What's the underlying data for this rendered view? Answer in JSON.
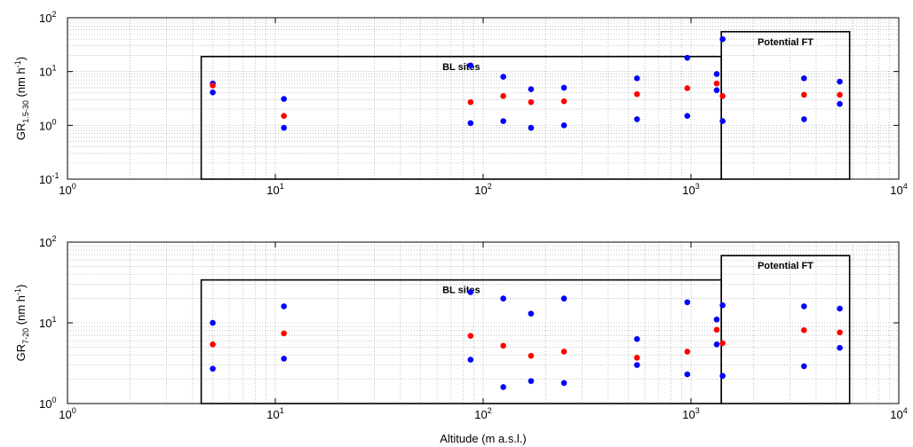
{
  "chart_data": [
    {
      "type": "scatter",
      "x_scale": "log",
      "y_scale": "log",
      "xlim": [
        1,
        10000
      ],
      "ylim": [
        0.1,
        100
      ],
      "grid": true,
      "ylabel": {
        "main": "GR",
        "sub": "1.5-30",
        "unit": " (nm h",
        "unit_exp": "-1",
        "close": ")"
      },
      "xlabel": "",
      "x_ticks": [
        {
          "base": "10",
          "exp": "0"
        },
        {
          "base": "10",
          "exp": "1"
        },
        {
          "base": "10",
          "exp": "2"
        },
        {
          "base": "10",
          "exp": "3"
        },
        {
          "base": "10",
          "exp": "4"
        }
      ],
      "y_ticks": [
        {
          "base": "10",
          "exp": "-1"
        },
        {
          "base": "10",
          "exp": "0"
        },
        {
          "base": "10",
          "exp": "1"
        },
        {
          "base": "10",
          "exp": "2"
        }
      ],
      "regions": [
        {
          "label": "BL sites",
          "x": [
            4.4,
            1400
          ],
          "y": [
            0.1,
            19
          ]
        },
        {
          "label": "Potential FT",
          "x": [
            1400,
            5800
          ],
          "y": [
            0.1,
            55
          ]
        }
      ],
      "series": [
        {
          "color": "#0000ff",
          "points": [
            [
              5,
              4.1
            ],
            [
              5,
              6.0
            ],
            [
              11,
              3.1
            ],
            [
              11,
              0.9
            ],
            [
              87,
              13
            ],
            [
              87,
              1.1
            ],
            [
              125,
              8
            ],
            [
              125,
              1.2
            ],
            [
              170,
              4.7
            ],
            [
              170,
              0.9
            ],
            [
              245,
              5.0
            ],
            [
              245,
              1.0
            ],
            [
              550,
              7.5
            ],
            [
              550,
              1.3
            ],
            [
              960,
              18
            ],
            [
              960,
              1.5
            ],
            [
              1330,
              9
            ],
            [
              1330,
              4.5
            ],
            [
              1420,
              40
            ],
            [
              1420,
              1.2
            ],
            [
              3500,
              7.5
            ],
            [
              3500,
              1.3
            ],
            [
              5200,
              6.5
            ],
            [
              5200,
              2.5
            ]
          ]
        },
        {
          "color": "#ff0000",
          "points": [
            [
              5,
              5.5
            ],
            [
              11,
              1.5
            ],
            [
              87,
              2.7
            ],
            [
              125,
              3.5
            ],
            [
              170,
              2.7
            ],
            [
              245,
              2.8
            ],
            [
              550,
              3.8
            ],
            [
              960,
              4.9
            ],
            [
              1330,
              6.0
            ],
            [
              1420,
              3.5
            ],
            [
              3500,
              3.7
            ],
            [
              5200,
              3.7
            ]
          ]
        }
      ]
    },
    {
      "type": "scatter",
      "x_scale": "log",
      "y_scale": "log",
      "xlim": [
        1,
        10000
      ],
      "ylim": [
        1,
        100
      ],
      "grid": true,
      "ylabel": {
        "main": "GR",
        "sub": "7-20",
        "unit": " (nm h",
        "unit_exp": "-1",
        "close": ")"
      },
      "xlabel": "Altitude (m a.s.l.)",
      "x_ticks": [
        {
          "base": "10",
          "exp": "0"
        },
        {
          "base": "10",
          "exp": "1"
        },
        {
          "base": "10",
          "exp": "2"
        },
        {
          "base": "10",
          "exp": "3"
        },
        {
          "base": "10",
          "exp": "4"
        }
      ],
      "y_ticks": [
        {
          "base": "10",
          "exp": "0"
        },
        {
          "base": "10",
          "exp": "1"
        },
        {
          "base": "10",
          "exp": "2"
        }
      ],
      "regions": [
        {
          "label": "BL sites",
          "x": [
            4.4,
            1400
          ],
          "y": [
            1,
            34
          ]
        },
        {
          "label": "Potential FT",
          "x": [
            1400,
            5800
          ],
          "y": [
            1,
            68
          ]
        }
      ],
      "series": [
        {
          "color": "#0000ff",
          "points": [
            [
              5,
              10
            ],
            [
              5,
              2.7
            ],
            [
              11,
              16
            ],
            [
              11,
              3.6
            ],
            [
              87,
              24
            ],
            [
              87,
              3.5
            ],
            [
              125,
              20
            ],
            [
              125,
              1.6
            ],
            [
              170,
              13
            ],
            [
              170,
              1.9
            ],
            [
              245,
              20
            ],
            [
              245,
              1.8
            ],
            [
              550,
              6.3
            ],
            [
              550,
              3.0
            ],
            [
              960,
              18
            ],
            [
              960,
              2.3
            ],
            [
              1330,
              11
            ],
            [
              1330,
              5.4
            ],
            [
              1420,
              16.5
            ],
            [
              1420,
              2.2
            ],
            [
              3500,
              16
            ],
            [
              3500,
              2.9
            ],
            [
              5200,
              15
            ],
            [
              5200,
              4.9
            ]
          ]
        },
        {
          "color": "#ff0000",
          "points": [
            [
              5,
              5.4
            ],
            [
              11,
              7.4
            ],
            [
              87,
              6.9
            ],
            [
              125,
              5.2
            ],
            [
              170,
              3.9
            ],
            [
              245,
              4.4
            ],
            [
              550,
              3.7
            ],
            [
              960,
              4.4
            ],
            [
              1330,
              8.2
            ],
            [
              1420,
              5.6
            ],
            [
              3500,
              8.1
            ],
            [
              5200,
              7.6
            ]
          ]
        }
      ]
    }
  ]
}
